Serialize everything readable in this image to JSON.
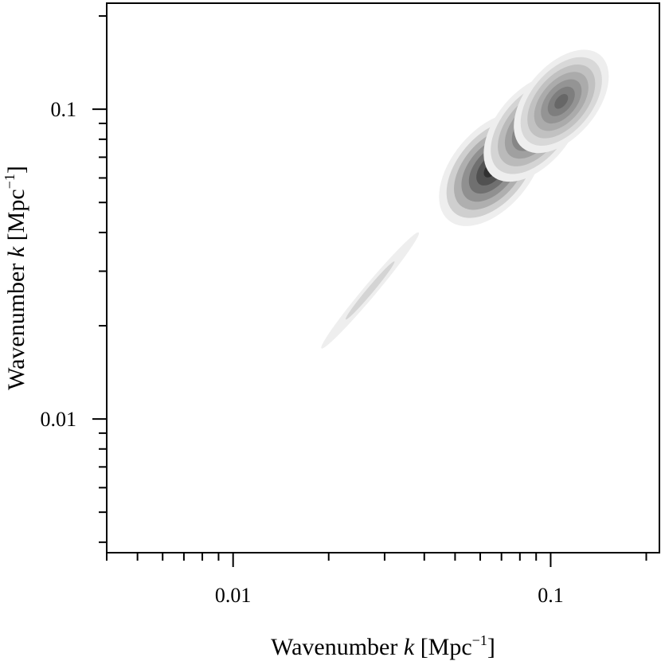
{
  "chart_data": {
    "type": "heatmap",
    "subtype": "2D density contour (filled), log-log axes",
    "title": "",
    "xlabel": {
      "prefix": "Wavenumber ",
      "var": "k",
      "unit_open": " [Mpc",
      "unit_sup": "−1",
      "unit_close": "]"
    },
    "ylabel": {
      "prefix": "Wavenumber ",
      "var": "k",
      "unit_open": " [Mpc",
      "unit_sup": "−1",
      "unit_close": "]"
    },
    "x_scale": "log",
    "y_scale": "log",
    "xlim": [
      0.004,
      0.22
    ],
    "ylim": [
      0.0037,
      0.22
    ],
    "x_ticklabels": [
      {
        "value": 0.01,
        "label": "0.01"
      },
      {
        "value": 0.1,
        "label": "0.1"
      }
    ],
    "y_ticklabels": [
      {
        "value": 0.01,
        "label": "0.01"
      },
      {
        "value": 0.1,
        "label": "0.1"
      }
    ],
    "grid": false,
    "colormap": "greys",
    "density_peaks": [
      {
        "x": 0.065,
        "y": 0.064,
        "level": 0.95
      },
      {
        "x": 0.088,
        "y": 0.087,
        "level": 0.8
      },
      {
        "x": 0.108,
        "y": 0.106,
        "level": 0.7
      },
      {
        "x": 0.027,
        "y": 0.026,
        "level": 0.2
      }
    ]
  }
}
